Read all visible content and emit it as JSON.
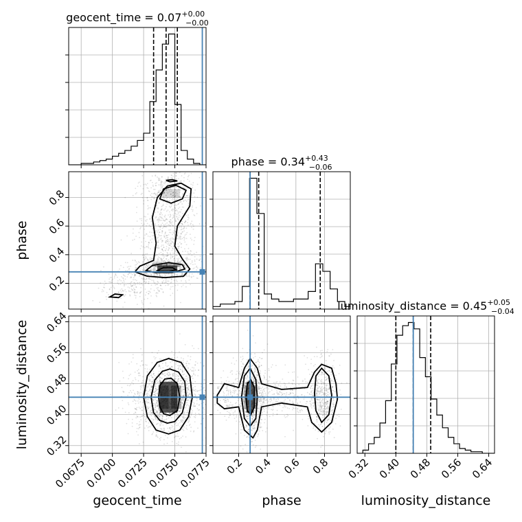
{
  "chart_data": {
    "type": "corner",
    "parameters": [
      {
        "name": "geocent_time",
        "title": "geocent_time = 0.07",
        "title_sup": "+0.00",
        "title_sub": "−0.00",
        "xlabel": "geocent_time",
        "ticks": [
          "0.0675",
          "0.0700",
          "0.0725",
          "0.0750",
          "0.0775"
        ],
        "range": [
          0.0665,
          0.0775
        ],
        "truth": 0.0772,
        "quantiles": [
          0.0733,
          0.0743,
          0.0752
        ],
        "hist_edges": [
          0.0665,
          0.067,
          0.0675,
          0.068,
          0.0685,
          0.069,
          0.0695,
          0.07,
          0.0705,
          0.071,
          0.0715,
          0.072,
          0.0725,
          0.073,
          0.0735,
          0.074,
          0.0745,
          0.075,
          0.0755,
          0.076,
          0.0765,
          0.077,
          0.0775
        ],
        "hist_values": [
          0,
          0,
          1,
          1,
          2,
          3,
          4,
          6,
          8,
          10,
          13,
          17,
          22,
          44,
          66,
          84,
          91,
          42,
          10,
          4,
          1,
          0
        ]
      },
      {
        "name": "phase",
        "title": "phase = 0.34",
        "title_sup": "+0.43",
        "title_sub": "−0.06",
        "ylabel": "phase",
        "xlabel": "phase",
        "ticks": [
          "0.2",
          "0.4",
          "0.6",
          "0.8"
        ],
        "range": [
          0.02,
          0.98
        ],
        "truth": 0.28,
        "quantiles": [
          0.28,
          0.34,
          0.77
        ],
        "hist_edges": [
          0.02,
          0.0712,
          0.1224,
          0.1736,
          0.2248,
          0.276,
          0.3272,
          0.3784,
          0.4296,
          0.4808,
          0.532,
          0.5832,
          0.6344,
          0.6856,
          0.7368,
          0.788,
          0.8392,
          0.8904,
          0.9416,
          0.98
        ],
        "hist_values": [
          1,
          2,
          2,
          3,
          9,
          52,
          38,
          6,
          4,
          3,
          3,
          4,
          4,
          7,
          18,
          15,
          8,
          3,
          1
        ]
      },
      {
        "name": "luminosity_distance",
        "title": "luminosity_distance = 0.45",
        "title_sup": "+0.05",
        "title_sub": "−0.04",
        "ylabel": "luminosity_distance",
        "xlabel": "luminosity_distance",
        "ticks": [
          "0.32",
          "0.40",
          "0.48",
          "0.56",
          "0.64"
        ],
        "range": [
          0.3,
          0.655
        ],
        "truth": 0.445,
        "quantiles": [
          0.4,
          0.445,
          0.49
        ],
        "hist_edges": [
          0.3,
          0.3147,
          0.3294,
          0.3441,
          0.3588,
          0.3735,
          0.3882,
          0.4029,
          0.4176,
          0.4323,
          0.447,
          0.4617,
          0.4764,
          0.4911,
          0.5058,
          0.5205,
          0.5352,
          0.5499,
          0.5646,
          0.5793,
          0.594,
          0.6087,
          0.6234,
          0.6381,
          0.655
        ],
        "hist_values": [
          0,
          2,
          6,
          10,
          19,
          33,
          56,
          74,
          80,
          82,
          78,
          60,
          48,
          34,
          24,
          16,
          10,
          6,
          3,
          2,
          1,
          1,
          0,
          0
        ]
      }
    ],
    "pairs": [
      {
        "x": "geocent_time",
        "y": "phase",
        "truth_marker": [
          0.0772,
          0.28
        ],
        "contours": [
          [
            [
              0.0718,
              0.28
            ],
            [
              0.0722,
              0.32
            ],
            [
              0.0733,
              0.36
            ],
            [
              0.0735,
              0.48
            ],
            [
              0.0732,
              0.66
            ],
            [
              0.0736,
              0.8
            ],
            [
              0.0744,
              0.88
            ],
            [
              0.0755,
              0.9
            ],
            [
              0.0763,
              0.86
            ],
            [
              0.0762,
              0.74
            ],
            [
              0.0752,
              0.6
            ],
            [
              0.075,
              0.46
            ],
            [
              0.0756,
              0.37
            ],
            [
              0.0762,
              0.3
            ],
            [
              0.0757,
              0.25
            ],
            [
              0.0742,
              0.24
            ],
            [
              0.0728,
              0.25
            ],
            [
              0.0718,
              0.28
            ]
          ],
          [
            [
              0.0727,
              0.29
            ],
            [
              0.0732,
              0.325
            ],
            [
              0.0745,
              0.345
            ],
            [
              0.0756,
              0.33
            ],
            [
              0.0758,
              0.3
            ],
            [
              0.0748,
              0.275
            ],
            [
              0.0734,
              0.275
            ],
            [
              0.0727,
              0.29
            ]
          ],
          [
            [
              0.0736,
              0.29
            ],
            [
              0.0741,
              0.31
            ],
            [
              0.0748,
              0.31
            ],
            [
              0.0751,
              0.295
            ],
            [
              0.0745,
              0.283
            ],
            [
              0.0738,
              0.285
            ],
            [
              0.0736,
              0.29
            ]
          ],
          [
            [
              0.0738,
              0.79
            ],
            [
              0.0741,
              0.86
            ],
            [
              0.0751,
              0.885
            ],
            [
              0.0759,
              0.85
            ],
            [
              0.0756,
              0.79
            ],
            [
              0.0747,
              0.76
            ],
            [
              0.0738,
              0.79
            ]
          ],
          [
            [
              0.0698,
              0.105
            ],
            [
              0.0702,
              0.125
            ],
            [
              0.0708,
              0.12
            ],
            [
              0.0705,
              0.1
            ],
            [
              0.0698,
              0.105
            ]
          ],
          [
            [
              0.0743,
              0.92
            ],
            [
              0.0748,
              0.925
            ],
            [
              0.0752,
              0.915
            ],
            [
              0.0746,
              0.91
            ],
            [
              0.0743,
              0.92
            ]
          ]
        ],
        "density": [
          {
            "x": 0.0744,
            "y": 0.3,
            "w": 0.0016,
            "h": 0.05,
            "level": 0.85
          },
          {
            "x": 0.0738,
            "y": 0.33,
            "w": 0.0012,
            "h": 0.03,
            "level": 0.35
          },
          {
            "x": 0.0749,
            "y": 0.33,
            "w": 0.0012,
            "h": 0.03,
            "level": 0.35
          },
          {
            "x": 0.0747,
            "y": 0.83,
            "w": 0.0014,
            "h": 0.06,
            "level": 0.2
          }
        ],
        "scatter_clusters": [
          {
            "cx": 0.0742,
            "cy": 0.3,
            "sx": 0.0014,
            "sy": 0.04,
            "n": 450
          },
          {
            "cx": 0.0745,
            "cy": 0.56,
            "sx": 0.0012,
            "sy": 0.18,
            "n": 750
          },
          {
            "cx": 0.0746,
            "cy": 0.86,
            "sx": 0.0011,
            "sy": 0.06,
            "n": 250
          },
          {
            "cx": 0.0718,
            "cy": 0.18,
            "sx": 0.0014,
            "sy": 0.07,
            "n": 250
          }
        ]
      },
      {
        "x": "geocent_time",
        "y": "luminosity_distance",
        "truth_marker": [
          0.0772,
          0.445
        ],
        "contours": [
          [
            [
              0.0725,
              0.445
            ],
            [
              0.0728,
              0.5
            ],
            [
              0.0736,
              0.535
            ],
            [
              0.0745,
              0.545
            ],
            [
              0.0755,
              0.535
            ],
            [
              0.0762,
              0.5
            ],
            [
              0.0764,
              0.445
            ],
            [
              0.0761,
              0.395
            ],
            [
              0.0754,
              0.36
            ],
            [
              0.0745,
              0.35
            ],
            [
              0.0735,
              0.36
            ],
            [
              0.0728,
              0.395
            ],
            [
              0.0725,
              0.445
            ]
          ],
          [
            [
              0.0731,
              0.445
            ],
            [
              0.0734,
              0.49
            ],
            [
              0.074,
              0.512
            ],
            [
              0.0746,
              0.518
            ],
            [
              0.0753,
              0.51
            ],
            [
              0.0758,
              0.485
            ],
            [
              0.0759,
              0.445
            ],
            [
              0.0756,
              0.405
            ],
            [
              0.075,
              0.382
            ],
            [
              0.0744,
              0.378
            ],
            [
              0.0738,
              0.385
            ],
            [
              0.0733,
              0.405
            ],
            [
              0.0731,
              0.445
            ]
          ],
          [
            [
              0.0737,
              0.445
            ],
            [
              0.0738,
              0.475
            ],
            [
              0.0742,
              0.492
            ],
            [
              0.0747,
              0.494
            ],
            [
              0.0752,
              0.48
            ],
            [
              0.0754,
              0.445
            ],
            [
              0.0752,
              0.41
            ],
            [
              0.0746,
              0.398
            ],
            [
              0.0741,
              0.402
            ],
            [
              0.0738,
              0.42
            ],
            [
              0.0737,
              0.445
            ]
          ]
        ],
        "density": [
          {
            "x": 0.0745,
            "y": 0.445,
            "w": 0.0014,
            "h": 0.08,
            "level": 0.9
          },
          {
            "x": 0.0741,
            "y": 0.445,
            "w": 0.0008,
            "h": 0.06,
            "level": 0.45
          },
          {
            "x": 0.0751,
            "y": 0.445,
            "w": 0.0008,
            "h": 0.06,
            "level": 0.45
          }
        ],
        "scatter_clusters": [
          {
            "cx": 0.0745,
            "cy": 0.445,
            "sx": 0.0015,
            "sy": 0.05,
            "n": 1500
          }
        ]
      },
      {
        "x": "phase",
        "y": "luminosity_distance",
        "truth_marker": [
          0.28,
          0.445
        ],
        "contours": [
          [
            [
              0.05,
              0.45
            ],
            [
              0.1,
              0.48
            ],
            [
              0.2,
              0.47
            ],
            [
              0.24,
              0.52
            ],
            [
              0.28,
              0.545
            ],
            [
              0.33,
              0.52
            ],
            [
              0.36,
              0.48
            ],
            [
              0.5,
              0.465
            ],
            [
              0.68,
              0.47
            ],
            [
              0.73,
              0.51
            ],
            [
              0.78,
              0.53
            ],
            [
              0.85,
              0.52
            ],
            [
              0.88,
              0.48
            ],
            [
              0.89,
              0.44
            ],
            [
              0.85,
              0.38
            ],
            [
              0.78,
              0.355
            ],
            [
              0.71,
              0.38
            ],
            [
              0.68,
              0.42
            ],
            [
              0.5,
              0.43
            ],
            [
              0.36,
              0.42
            ],
            [
              0.33,
              0.36
            ],
            [
              0.3,
              0.34
            ],
            [
              0.24,
              0.36
            ],
            [
              0.2,
              0.42
            ],
            [
              0.1,
              0.415
            ],
            [
              0.05,
              0.43
            ],
            [
              0.05,
              0.45
            ]
          ],
          [
            [
              0.22,
              0.445
            ],
            [
              0.24,
              0.5
            ],
            [
              0.28,
              0.52
            ],
            [
              0.32,
              0.49
            ],
            [
              0.33,
              0.445
            ],
            [
              0.32,
              0.39
            ],
            [
              0.28,
              0.37
            ],
            [
              0.24,
              0.39
            ],
            [
              0.22,
              0.445
            ]
          ],
          [
            [
              0.25,
              0.445
            ],
            [
              0.26,
              0.48
            ],
            [
              0.285,
              0.49
            ],
            [
              0.31,
              0.47
            ],
            [
              0.31,
              0.42
            ],
            [
              0.285,
              0.4
            ],
            [
              0.26,
              0.41
            ],
            [
              0.25,
              0.445
            ]
          ],
          [
            [
              0.73,
              0.455
            ],
            [
              0.74,
              0.5
            ],
            [
              0.78,
              0.52
            ],
            [
              0.83,
              0.5
            ],
            [
              0.85,
              0.45
            ],
            [
              0.83,
              0.4
            ],
            [
              0.78,
              0.38
            ],
            [
              0.74,
              0.41
            ],
            [
              0.73,
              0.455
            ]
          ]
        ],
        "density": [
          {
            "x": 0.28,
            "y": 0.445,
            "w": 0.05,
            "h": 0.08,
            "level": 0.85
          },
          {
            "x": 0.25,
            "y": 0.445,
            "w": 0.025,
            "h": 0.06,
            "level": 0.4
          },
          {
            "x": 0.31,
            "y": 0.445,
            "w": 0.025,
            "h": 0.06,
            "level": 0.4
          }
        ],
        "scatter_clusters": [
          {
            "cx": 0.29,
            "cy": 0.445,
            "sx": 0.05,
            "sy": 0.05,
            "n": 900
          },
          {
            "cx": 0.79,
            "cy": 0.445,
            "sx": 0.05,
            "sy": 0.05,
            "n": 500
          },
          {
            "cx": 0.52,
            "cy": 0.445,
            "sx": 0.12,
            "sy": 0.03,
            "n": 250
          },
          {
            "cx": 0.12,
            "cy": 0.445,
            "sx": 0.05,
            "sy": 0.03,
            "n": 120
          }
        ]
      }
    ],
    "grid": true
  }
}
